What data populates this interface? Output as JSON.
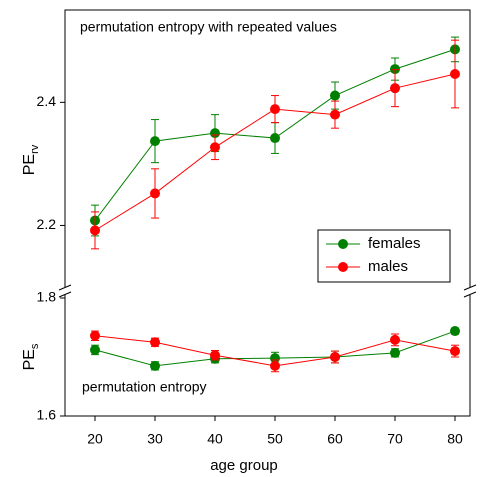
{
  "chart_data": [
    {
      "type": "line",
      "annotation": "permutation entropy with repeated values",
      "ylabel": "PE",
      "ylabel_sub": "rv",
      "x": [
        20,
        30,
        40,
        50,
        60,
        70,
        80
      ],
      "xlim": [
        15,
        82.5
      ],
      "ylim": [
        2.1,
        2.55
      ],
      "yticks": [
        2.2,
        2.4
      ],
      "legend": "lower right",
      "series": [
        {
          "name": "females",
          "color": "#008000",
          "values": [
            2.208,
            2.337,
            2.35,
            2.342,
            2.411,
            2.454,
            2.486
          ],
          "errors": [
            0.025,
            0.035,
            0.03,
            0.025,
            0.022,
            0.018,
            0.02
          ]
        },
        {
          "name": "males",
          "color": "#ff0000",
          "values": [
            2.192,
            2.252,
            2.327,
            2.389,
            2.38,
            2.423,
            2.446
          ],
          "errors": [
            0.03,
            0.04,
            0.02,
            0.022,
            0.022,
            0.03,
            0.055
          ]
        }
      ]
    },
    {
      "type": "line",
      "annotation": "permutation  entropy",
      "ylabel": "PE",
      "ylabel_sub": "s",
      "xlabel": "age group",
      "x": [
        20,
        30,
        40,
        50,
        60,
        70,
        80
      ],
      "xlim": [
        15,
        82.5
      ],
      "xticks": [
        20,
        30,
        40,
        50,
        60,
        70,
        80
      ],
      "ylim": [
        1.6,
        1.8
      ],
      "yticks": [
        1.6,
        1.8
      ],
      "series": [
        {
          "color": "#008000",
          "values": [
            1.712,
            1.685,
            1.697,
            1.698,
            1.7,
            1.707,
            1.744
          ],
          "errors": [
            0.008,
            0.007,
            0.007,
            0.01,
            0.01,
            0.007,
            0.005
          ]
        },
        {
          "color": "#ff0000",
          "values": [
            1.736,
            1.725,
            1.703,
            1.685,
            1.7,
            1.729,
            1.71
          ],
          "errors": [
            0.008,
            0.007,
            0.008,
            0.01,
            0.01,
            0.01,
            0.01
          ]
        }
      ]
    }
  ]
}
